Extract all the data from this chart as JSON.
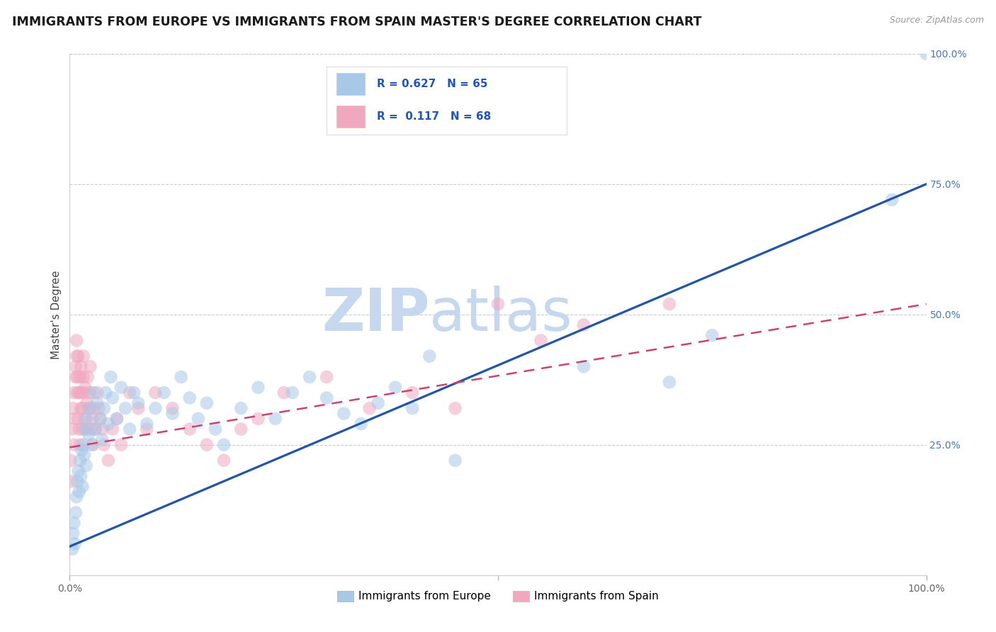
{
  "title": "IMMIGRANTS FROM EUROPE VS IMMIGRANTS FROM SPAIN MASTER'S DEGREE CORRELATION CHART",
  "source": "Source: ZipAtlas.com",
  "ylabel": "Master's Degree",
  "xlim": [
    0,
    1
  ],
  "ylim": [
    0,
    1
  ],
  "ytick_positions": [
    0.25,
    0.5,
    0.75,
    1.0
  ],
  "ytick_labels": [
    "25.0%",
    "50.0%",
    "75.0%",
    "100.0%"
  ],
  "blue_color": "#A8C8E8",
  "pink_color": "#F0A8C0",
  "blue_line_color": "#2255AA",
  "pink_line_color": "#D04070",
  "background_color": "#ffffff",
  "grid_color": "#cccccc",
  "watermark_zip": "ZIP",
  "watermark_atlas": "atlas",
  "legend_R_blue": "R = 0.627",
  "legend_N_blue": "N = 65",
  "legend_R_pink": "R =  0.117",
  "legend_N_pink": "N = 68",
  "legend_label_blue": "Immigrants from Europe",
  "legend_label_pink": "Immigrants from Spain",
  "blue_scatter_x": [
    0.003,
    0.004,
    0.005,
    0.006,
    0.007,
    0.008,
    0.009,
    0.01,
    0.011,
    0.012,
    0.013,
    0.014,
    0.015,
    0.016,
    0.017,
    0.018,
    0.019,
    0.02,
    0.022,
    0.024,
    0.026,
    0.028,
    0.03,
    0.032,
    0.035,
    0.038,
    0.04,
    0.042,
    0.045,
    0.048,
    0.05,
    0.055,
    0.06,
    0.065,
    0.07,
    0.075,
    0.08,
    0.09,
    0.1,
    0.11,
    0.12,
    0.13,
    0.14,
    0.15,
    0.16,
    0.17,
    0.18,
    0.2,
    0.22,
    0.24,
    0.26,
    0.28,
    0.3,
    0.32,
    0.34,
    0.36,
    0.38,
    0.4,
    0.42,
    0.45,
    0.6,
    0.7,
    0.75,
    0.96,
    1.0
  ],
  "blue_scatter_y": [
    0.05,
    0.08,
    0.1,
    0.06,
    0.12,
    0.15,
    0.18,
    0.2,
    0.16,
    0.22,
    0.19,
    0.24,
    0.17,
    0.25,
    0.23,
    0.28,
    0.21,
    0.3,
    0.27,
    0.32,
    0.25,
    0.35,
    0.28,
    0.33,
    0.3,
    0.26,
    0.32,
    0.35,
    0.29,
    0.38,
    0.34,
    0.3,
    0.36,
    0.32,
    0.28,
    0.35,
    0.33,
    0.29,
    0.32,
    0.35,
    0.31,
    0.38,
    0.34,
    0.3,
    0.33,
    0.28,
    0.25,
    0.32,
    0.36,
    0.3,
    0.35,
    0.38,
    0.34,
    0.31,
    0.29,
    0.33,
    0.36,
    0.32,
    0.42,
    0.22,
    0.4,
    0.37,
    0.46,
    0.72,
    1.0
  ],
  "pink_scatter_x": [
    0.001,
    0.002,
    0.003,
    0.004,
    0.005,
    0.005,
    0.006,
    0.007,
    0.007,
    0.008,
    0.008,
    0.009,
    0.009,
    0.01,
    0.01,
    0.011,
    0.011,
    0.012,
    0.012,
    0.013,
    0.013,
    0.014,
    0.015,
    0.015,
    0.016,
    0.016,
    0.017,
    0.018,
    0.018,
    0.019,
    0.02,
    0.021,
    0.022,
    0.023,
    0.024,
    0.025,
    0.026,
    0.027,
    0.028,
    0.03,
    0.032,
    0.034,
    0.036,
    0.038,
    0.04,
    0.045,
    0.05,
    0.055,
    0.06,
    0.07,
    0.08,
    0.09,
    0.1,
    0.12,
    0.14,
    0.16,
    0.18,
    0.2,
    0.22,
    0.25,
    0.3,
    0.35,
    0.4,
    0.45,
    0.5,
    0.55,
    0.6,
    0.7
  ],
  "pink_scatter_y": [
    0.22,
    0.18,
    0.28,
    0.32,
    0.25,
    0.35,
    0.3,
    0.4,
    0.38,
    0.42,
    0.45,
    0.38,
    0.35,
    0.42,
    0.3,
    0.28,
    0.35,
    0.38,
    0.25,
    0.32,
    0.4,
    0.35,
    0.28,
    0.32,
    0.38,
    0.42,
    0.35,
    0.3,
    0.36,
    0.28,
    0.33,
    0.38,
    0.32,
    0.35,
    0.4,
    0.28,
    0.3,
    0.25,
    0.32,
    0.28,
    0.35,
    0.32,
    0.3,
    0.28,
    0.25,
    0.22,
    0.28,
    0.3,
    0.25,
    0.35,
    0.32,
    0.28,
    0.35,
    0.32,
    0.28,
    0.25,
    0.22,
    0.28,
    0.3,
    0.35,
    0.38,
    0.32,
    0.35,
    0.32,
    0.52,
    0.45,
    0.48,
    0.52
  ],
  "blue_line_x": [
    0.0,
    1.0
  ],
  "blue_line_y": [
    0.055,
    0.75
  ],
  "pink_line_x": [
    0.0,
    1.0
  ],
  "pink_line_y": [
    0.245,
    0.52
  ],
  "title_fontsize": 12.5,
  "axis_label_fontsize": 11,
  "tick_fontsize": 10,
  "watermark_fontsize_zip": 60,
  "watermark_fontsize_atlas": 60,
  "tick_color_right": "#4477CC",
  "legend_fontsize": 11,
  "legend_text_color": "#2255BB"
}
